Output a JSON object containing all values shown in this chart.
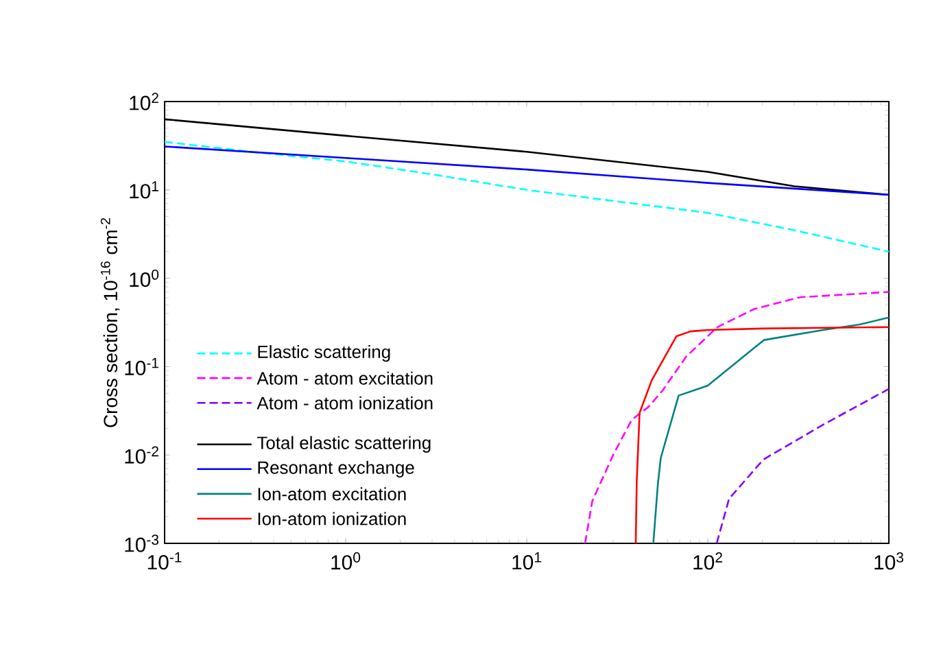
{
  "chart_data": {
    "type": "line",
    "log": "xy",
    "ylabel": "Cross section, 10$^{-16}$ cm$^{-2}$",
    "xlim": [
      0.1,
      1000
    ],
    "ylim": [
      0.001,
      100
    ],
    "xticks": [
      {
        "value": 0.1,
        "label": "10$^{-1}$"
      },
      {
        "value": 1,
        "label": "10$^{0}$"
      },
      {
        "value": 10,
        "label": "10$^{1}$"
      },
      {
        "value": 100,
        "label": "10$^{2}$"
      },
      {
        "value": 1000,
        "label": "10$^{3}$"
      }
    ],
    "yticks": [
      {
        "value": 0.001,
        "label": "10$^{-3}$"
      },
      {
        "value": 0.01,
        "label": "10$^{-2}$"
      },
      {
        "value": 0.1,
        "label": "10$^{-1}$"
      },
      {
        "value": 1,
        "label": "10$^{0}$"
      },
      {
        "value": 10,
        "label": "10$^{1}$"
      },
      {
        "value": 100,
        "label": "10$^{2}$"
      }
    ],
    "grid": false,
    "legend": "left",
    "marker": "none",
    "series": [
      {
        "name": "Elastic scattering",
        "color": "#00ffff",
        "line_style": "dashed",
        "x": [
          0.1,
          0.3,
          1,
          3,
          10,
          30,
          100,
          300,
          1000
        ],
        "values": [
          35,
          27,
          21,
          15,
          10,
          7.5,
          5.5,
          3.5,
          2
        ]
      },
      {
        "name": "Atom - atom excitation",
        "color": "#ff00ff",
        "line_style": "dashed",
        "x": [
          21,
          23,
          30,
          38,
          47,
          56,
          76,
          113,
          181,
          324,
          1000
        ],
        "values": [
          0.001,
          0.003,
          0.01,
          0.025,
          0.035,
          0.053,
          0.13,
          0.28,
          0.45,
          0.61,
          0.7
        ]
      },
      {
        "name": "Atom - atom ionization",
        "color": "#8000ff",
        "line_style": "dashed",
        "x": [
          112,
          131,
          203,
          433,
          1000
        ],
        "values": [
          0.001,
          0.0032,
          0.0089,
          0.022,
          0.056
        ]
      },
      {
        "name": "Total elastic scattering",
        "color": "#000000",
        "line_style": "solid",
        "x": [
          0.1,
          1,
          10,
          100,
          300,
          1000
        ],
        "values": [
          63,
          41,
          27,
          16,
          11,
          8.8
        ]
      },
      {
        "name": "Resonant exchange",
        "color": "#0000ff",
        "line_style": "solid",
        "x": [
          0.1,
          1,
          10,
          100,
          1000
        ],
        "values": [
          31,
          23,
          17,
          12,
          8.8
        ]
      },
      {
        "name": "Ion-atom excitation",
        "color": "#008080",
        "line_style": "solid",
        "x": [
          50,
          53,
          55,
          69,
          100,
          204,
          433,
          690,
          1000
        ],
        "values": [
          0.001,
          0.0047,
          0.0093,
          0.047,
          0.061,
          0.2,
          0.26,
          0.3,
          0.36
        ]
      },
      {
        "name": "Ion-atom ionization",
        "color": "#ff0000",
        "line_style": "solid",
        "x": [
          40,
          40.5,
          42,
          49,
          67,
          80,
          100,
          200,
          1000
        ],
        "values": [
          0.001,
          0.005,
          0.03,
          0.07,
          0.22,
          0.25,
          0.26,
          0.27,
          0.28
        ]
      }
    ]
  }
}
